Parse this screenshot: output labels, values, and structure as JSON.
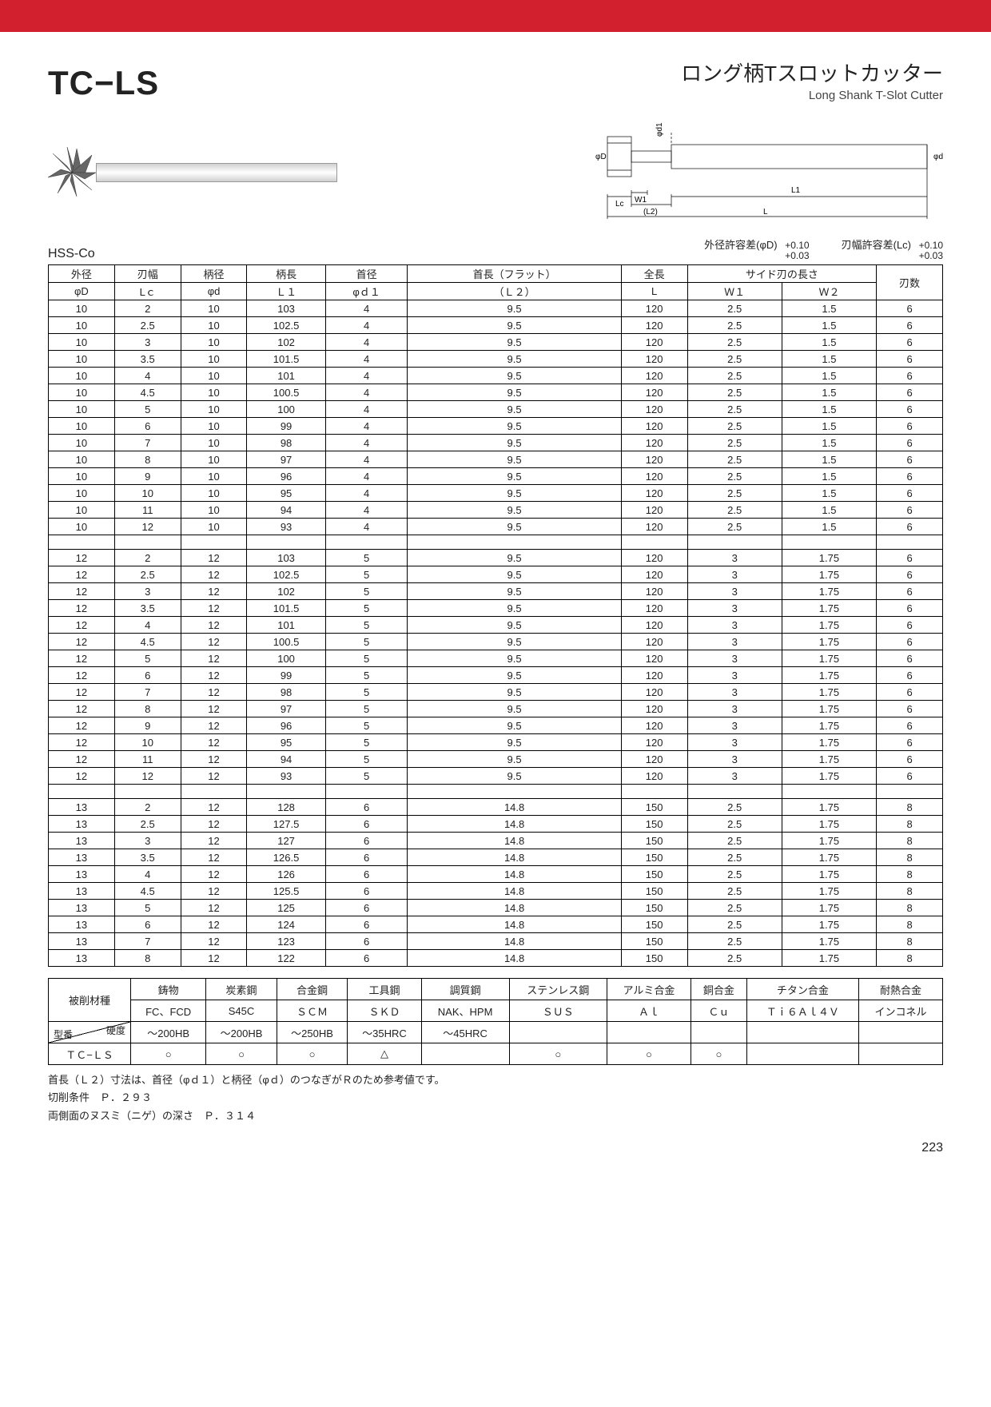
{
  "header": {
    "product_code": "TC−LS",
    "title_jp": "ロング柄Tスロットカッター",
    "title_en": "Long Shank T-Slot Cutter"
  },
  "material_grade": "HSS-Co",
  "tolerances": {
    "od": {
      "label": "外径許容差(φD)",
      "upper": "+0.10",
      "lower": "+0.03"
    },
    "width": {
      "label": "刃幅許容差(Lc)",
      "upper": "+0.10",
      "lower": "+0.03"
    }
  },
  "spec_table": {
    "header_top": [
      "外径",
      "刃幅",
      "柄径",
      "柄長",
      "首径",
      "首長（フラット）",
      "全長",
      "サイド刃の長さ",
      "",
      "刃数"
    ],
    "header_sub": [
      "φD",
      "Lｃ",
      "φd",
      "Ｌ１",
      "φｄ１",
      "（Ｌ２）",
      "L",
      "Ｗ１",
      "Ｗ２",
      ""
    ],
    "groups": [
      {
        "rows": [
          [
            "10",
            "2",
            "10",
            "103",
            "4",
            "9.5",
            "120",
            "2.5",
            "1.5",
            "6"
          ],
          [
            "10",
            "2.5",
            "10",
            "102.5",
            "4",
            "9.5",
            "120",
            "2.5",
            "1.5",
            "6"
          ],
          [
            "10",
            "3",
            "10",
            "102",
            "4",
            "9.5",
            "120",
            "2.5",
            "1.5",
            "6"
          ],
          [
            "10",
            "3.5",
            "10",
            "101.5",
            "4",
            "9.5",
            "120",
            "2.5",
            "1.5",
            "6"
          ],
          [
            "10",
            "4",
            "10",
            "101",
            "4",
            "9.5",
            "120",
            "2.5",
            "1.5",
            "6"
          ],
          [
            "10",
            "4.5",
            "10",
            "100.5",
            "4",
            "9.5",
            "120",
            "2.5",
            "1.5",
            "6"
          ],
          [
            "10",
            "5",
            "10",
            "100",
            "4",
            "9.5",
            "120",
            "2.5",
            "1.5",
            "6"
          ],
          [
            "10",
            "6",
            "10",
            "99",
            "4",
            "9.5",
            "120",
            "2.5",
            "1.5",
            "6"
          ],
          [
            "10",
            "7",
            "10",
            "98",
            "4",
            "9.5",
            "120",
            "2.5",
            "1.5",
            "6"
          ],
          [
            "10",
            "8",
            "10",
            "97",
            "4",
            "9.5",
            "120",
            "2.5",
            "1.5",
            "6"
          ],
          [
            "10",
            "9",
            "10",
            "96",
            "4",
            "9.5",
            "120",
            "2.5",
            "1.5",
            "6"
          ],
          [
            "10",
            "10",
            "10",
            "95",
            "4",
            "9.5",
            "120",
            "2.5",
            "1.5",
            "6"
          ],
          [
            "10",
            "11",
            "10",
            "94",
            "4",
            "9.5",
            "120",
            "2.5",
            "1.5",
            "6"
          ],
          [
            "10",
            "12",
            "10",
            "93",
            "4",
            "9.5",
            "120",
            "2.5",
            "1.5",
            "6"
          ]
        ]
      },
      {
        "rows": [
          [
            "12",
            "2",
            "12",
            "103",
            "5",
            "9.5",
            "120",
            "3",
            "1.75",
            "6"
          ],
          [
            "12",
            "2.5",
            "12",
            "102.5",
            "5",
            "9.5",
            "120",
            "3",
            "1.75",
            "6"
          ],
          [
            "12",
            "3",
            "12",
            "102",
            "5",
            "9.5",
            "120",
            "3",
            "1.75",
            "6"
          ],
          [
            "12",
            "3.5",
            "12",
            "101.5",
            "5",
            "9.5",
            "120",
            "3",
            "1.75",
            "6"
          ],
          [
            "12",
            "4",
            "12",
            "101",
            "5",
            "9.5",
            "120",
            "3",
            "1.75",
            "6"
          ],
          [
            "12",
            "4.5",
            "12",
            "100.5",
            "5",
            "9.5",
            "120",
            "3",
            "1.75",
            "6"
          ],
          [
            "12",
            "5",
            "12",
            "100",
            "5",
            "9.5",
            "120",
            "3",
            "1.75",
            "6"
          ],
          [
            "12",
            "6",
            "12",
            "99",
            "5",
            "9.5",
            "120",
            "3",
            "1.75",
            "6"
          ],
          [
            "12",
            "7",
            "12",
            "98",
            "5",
            "9.5",
            "120",
            "3",
            "1.75",
            "6"
          ],
          [
            "12",
            "8",
            "12",
            "97",
            "5",
            "9.5",
            "120",
            "3",
            "1.75",
            "6"
          ],
          [
            "12",
            "9",
            "12",
            "96",
            "5",
            "9.5",
            "120",
            "3",
            "1.75",
            "6"
          ],
          [
            "12",
            "10",
            "12",
            "95",
            "5",
            "9.5",
            "120",
            "3",
            "1.75",
            "6"
          ],
          [
            "12",
            "11",
            "12",
            "94",
            "5",
            "9.5",
            "120",
            "3",
            "1.75",
            "6"
          ],
          [
            "12",
            "12",
            "12",
            "93",
            "5",
            "9.5",
            "120",
            "3",
            "1.75",
            "6"
          ]
        ]
      },
      {
        "rows": [
          [
            "13",
            "2",
            "12",
            "128",
            "6",
            "14.8",
            "150",
            "2.5",
            "1.75",
            "8"
          ],
          [
            "13",
            "2.5",
            "12",
            "127.5",
            "6",
            "14.8",
            "150",
            "2.5",
            "1.75",
            "8"
          ],
          [
            "13",
            "3",
            "12",
            "127",
            "6",
            "14.8",
            "150",
            "2.5",
            "1.75",
            "8"
          ],
          [
            "13",
            "3.5",
            "12",
            "126.5",
            "6",
            "14.8",
            "150",
            "2.5",
            "1.75",
            "8"
          ],
          [
            "13",
            "4",
            "12",
            "126",
            "6",
            "14.8",
            "150",
            "2.5",
            "1.75",
            "8"
          ],
          [
            "13",
            "4.5",
            "12",
            "125.5",
            "6",
            "14.8",
            "150",
            "2.5",
            "1.75",
            "8"
          ],
          [
            "13",
            "5",
            "12",
            "125",
            "6",
            "14.8",
            "150",
            "2.5",
            "1.75",
            "8"
          ],
          [
            "13",
            "6",
            "12",
            "124",
            "6",
            "14.8",
            "150",
            "2.5",
            "1.75",
            "8"
          ],
          [
            "13",
            "7",
            "12",
            "123",
            "6",
            "14.8",
            "150",
            "2.5",
            "1.75",
            "8"
          ],
          [
            "13",
            "8",
            "12",
            "122",
            "6",
            "14.8",
            "150",
            "2.5",
            "1.75",
            "8"
          ]
        ]
      }
    ]
  },
  "material_table": {
    "row1_label": "被削材種",
    "diag_top": "硬度",
    "diag_bot": "型番",
    "model": "ＴＣ−ＬＳ",
    "cols": [
      {
        "jp": "鋳物",
        "en": "FC、FCD",
        "hard": "～200HB",
        "mark": "○"
      },
      {
        "jp": "炭素鋼",
        "en": "S45C",
        "hard": "～200HB",
        "mark": "○"
      },
      {
        "jp": "合金鋼",
        "en": "ＳＣＭ",
        "hard": "～250HB",
        "mark": "○"
      },
      {
        "jp": "工具鋼",
        "en": "ＳＫＤ",
        "hard": "～35HRC",
        "mark": "△"
      },
      {
        "jp": "調質鋼",
        "en": "NAK、HPM",
        "hard": "～45HRC",
        "mark": ""
      },
      {
        "jp": "ステンレス鋼",
        "en": "ＳＵＳ",
        "hard": "",
        "mark": "○"
      },
      {
        "jp": "アルミ合金",
        "en": "Ａｌ",
        "hard": "",
        "mark": "○"
      },
      {
        "jp": "銅合金",
        "en": "Ｃｕ",
        "hard": "",
        "mark": "○"
      },
      {
        "jp": "チタン合金",
        "en": "Ｔｉ６Ａｌ４Ｖ",
        "hard": "",
        "mark": ""
      },
      {
        "jp": "耐熱合金",
        "en": "インコネル",
        "hard": "",
        "mark": ""
      }
    ]
  },
  "notes": [
    "首長（Ｌ２）寸法は、首径（φｄ１）と柄径（φｄ）のつなぎがＲのため参考値です。",
    "切削条件　Ｐ．２９３",
    "両側面のヌスミ（ニゲ）の深さ　Ｐ．３１４"
  ],
  "page_number": "223",
  "drawing_labels": [
    "φD",
    "φd1",
    "φd",
    "Lc",
    "W1",
    "(L2)",
    "L1",
    "L"
  ],
  "styling": {
    "accent_red": "#d2202f",
    "border": "#000000",
    "body_font_size": 13,
    "code_font_size": 42
  }
}
